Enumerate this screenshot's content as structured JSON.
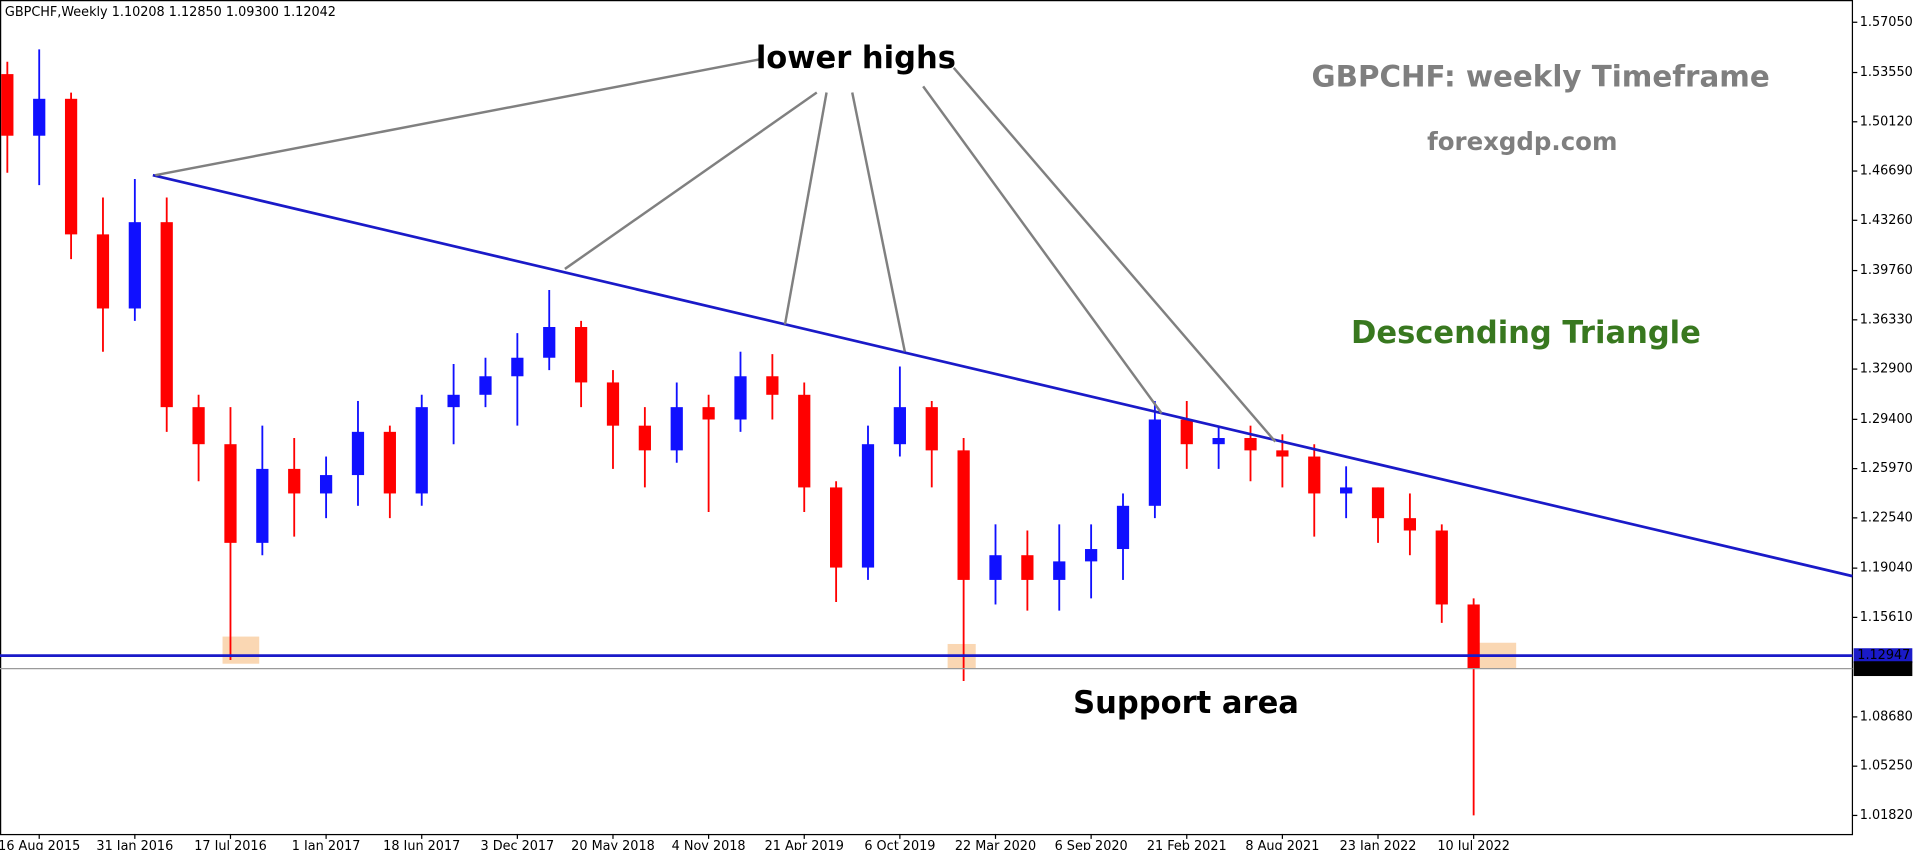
{
  "chart_data": {
    "type": "candlestick",
    "header": "GBPCHF,Weekly  1.10208 1.12850 1.09300 1.12042",
    "title": "GBPCHF: weekly Timeframe",
    "subtitle": "forexgdp.com",
    "annotations": [
      "lower highs",
      "Descending Triangle",
      "Support area"
    ],
    "categories": [
      null,
      "16 Aug 2015",
      null,
      null,
      "31 Jan 2016",
      null,
      null,
      "17 Jul 2016",
      null,
      null,
      "1 Jan 2017",
      null,
      null,
      "18 Jun 2017",
      null,
      null,
      "3 Dec 2017",
      null,
      null,
      "20 May 2018",
      null,
      null,
      "4 Nov 2018",
      null,
      null,
      "21 Apr 2019",
      null,
      null,
      "6 Oct 2019",
      null,
      null,
      "22 Mar 2020",
      null,
      null,
      "6 Sep 2020",
      null,
      null,
      "21 Feb 2021",
      null,
      null,
      "8 Aug 2021",
      null,
      null,
      "23 Jan 2022",
      null,
      null,
      "10 Jul 2022"
    ],
    "open": [
      1.5344,
      1.4915,
      1.5172,
      1.4228,
      1.3712,
      1.4313,
      1.3025,
      1.2767,
      1.208,
      1.2595,
      1.2424,
      1.2552,
      1.2853,
      1.2424,
      1.3025,
      1.3111,
      1.324,
      1.3369,
      1.3583,
      1.3197,
      1.2896,
      1.2724,
      1.3025,
      1.2939,
      1.324,
      1.3111,
      1.2466,
      1.1908,
      1.2767,
      1.3025,
      1.2724,
      1.1822,
      1.1994,
      1.1822,
      1.1951,
      1.2037,
      1.2338,
      1.2939,
      1.2767,
      1.281,
      1.2724,
      1.2681,
      1.2424,
      1.2466,
      1.2252,
      1.2166,
      1.1651
    ],
    "high": [
      1.543,
      1.5516,
      1.5215,
      1.4485,
      1.4614,
      1.4485,
      1.3111,
      1.3025,
      1.2896,
      1.281,
      1.2681,
      1.3068,
      1.2896,
      1.3111,
      1.3325,
      1.3369,
      1.354,
      1.3841,
      1.3626,
      1.3283,
      1.3025,
      1.3197,
      1.3111,
      1.3411,
      1.3394,
      1.3197,
      1.2509,
      1.2896,
      1.3308,
      1.3068,
      1.281,
      1.2209,
      1.2166,
      1.2209,
      1.2209,
      1.2424,
      1.3068,
      1.3068,
      1.2896,
      1.2896,
      1.2836,
      1.2767,
      1.2613,
      1.2466,
      1.2424,
      1.2209,
      1.1693
    ],
    "low": [
      1.4657,
      1.4571,
      1.4056,
      1.3411,
      1.3626,
      1.2853,
      1.2509,
      1.1264,
      1.1994,
      1.2123,
      1.2252,
      1.2338,
      1.2252,
      1.2338,
      1.2767,
      1.3025,
      1.2896,
      1.3283,
      1.3025,
      1.2595,
      1.2466,
      1.2638,
      1.2295,
      1.2853,
      1.2939,
      1.2295,
      1.1668,
      1.1822,
      1.2681,
      1.2466,
      1.1118,
      1.1651,
      1.1608,
      1.1608,
      1.1693,
      1.1822,
      1.2252,
      1.2595,
      1.2595,
      1.2509,
      1.2466,
      1.2123,
      1.2252,
      1.208,
      1.1994,
      1.1523,
      1.0182
    ],
    "close": [
      1.4915,
      1.5172,
      1.4228,
      1.3712,
      1.4313,
      1.3025,
      1.2767,
      1.208,
      1.2595,
      1.2424,
      1.2552,
      1.2853,
      1.2424,
      1.3025,
      1.3111,
      1.324,
      1.3369,
      1.3583,
      1.3197,
      1.2896,
      1.2724,
      1.3025,
      1.2939,
      1.324,
      1.3111,
      1.2466,
      1.1908,
      1.2767,
      1.3025,
      1.2724,
      1.1822,
      1.1994,
      1.1822,
      1.1951,
      1.2037,
      1.2338,
      1.2939,
      1.2767,
      1.281,
      1.2724,
      1.2681,
      1.2424,
      1.2466,
      1.2252,
      1.2166,
      1.1651,
      1.1204
    ],
    "up_color": "#1010ff",
    "down_color": "#ff0000",
    "ylim": [
      1.0053,
      1.586
    ],
    "yticks": [
      {
        "value": 1.5705,
        "label": "1.57050"
      },
      {
        "value": 1.5355,
        "label": "1.53550"
      },
      {
        "value": 1.5012,
        "label": "1.50120"
      },
      {
        "value": 1.4669,
        "label": "1.46690"
      },
      {
        "value": 1.4326,
        "label": "1.43260"
      },
      {
        "value": 1.3976,
        "label": "1.39760"
      },
      {
        "value": 1.3633,
        "label": "1.36330"
      },
      {
        "value": 1.329,
        "label": "1.32900"
      },
      {
        "value": 1.294,
        "label": "1.29400"
      },
      {
        "value": 1.2597,
        "label": "1.25970"
      },
      {
        "value": 1.2254,
        "label": "1.22540"
      },
      {
        "value": 1.1904,
        "label": "1.19040"
      },
      {
        "value": 1.1561,
        "label": "1.15610"
      },
      {
        "value": 1.0868,
        "label": "1.08680"
      },
      {
        "value": 1.0525,
        "label": "1.05250"
      },
      {
        "value": 1.0182,
        "label": "1.01820"
      }
    ],
    "support_level": 1.12947,
    "last_price": 1.12042,
    "grid": false
  }
}
